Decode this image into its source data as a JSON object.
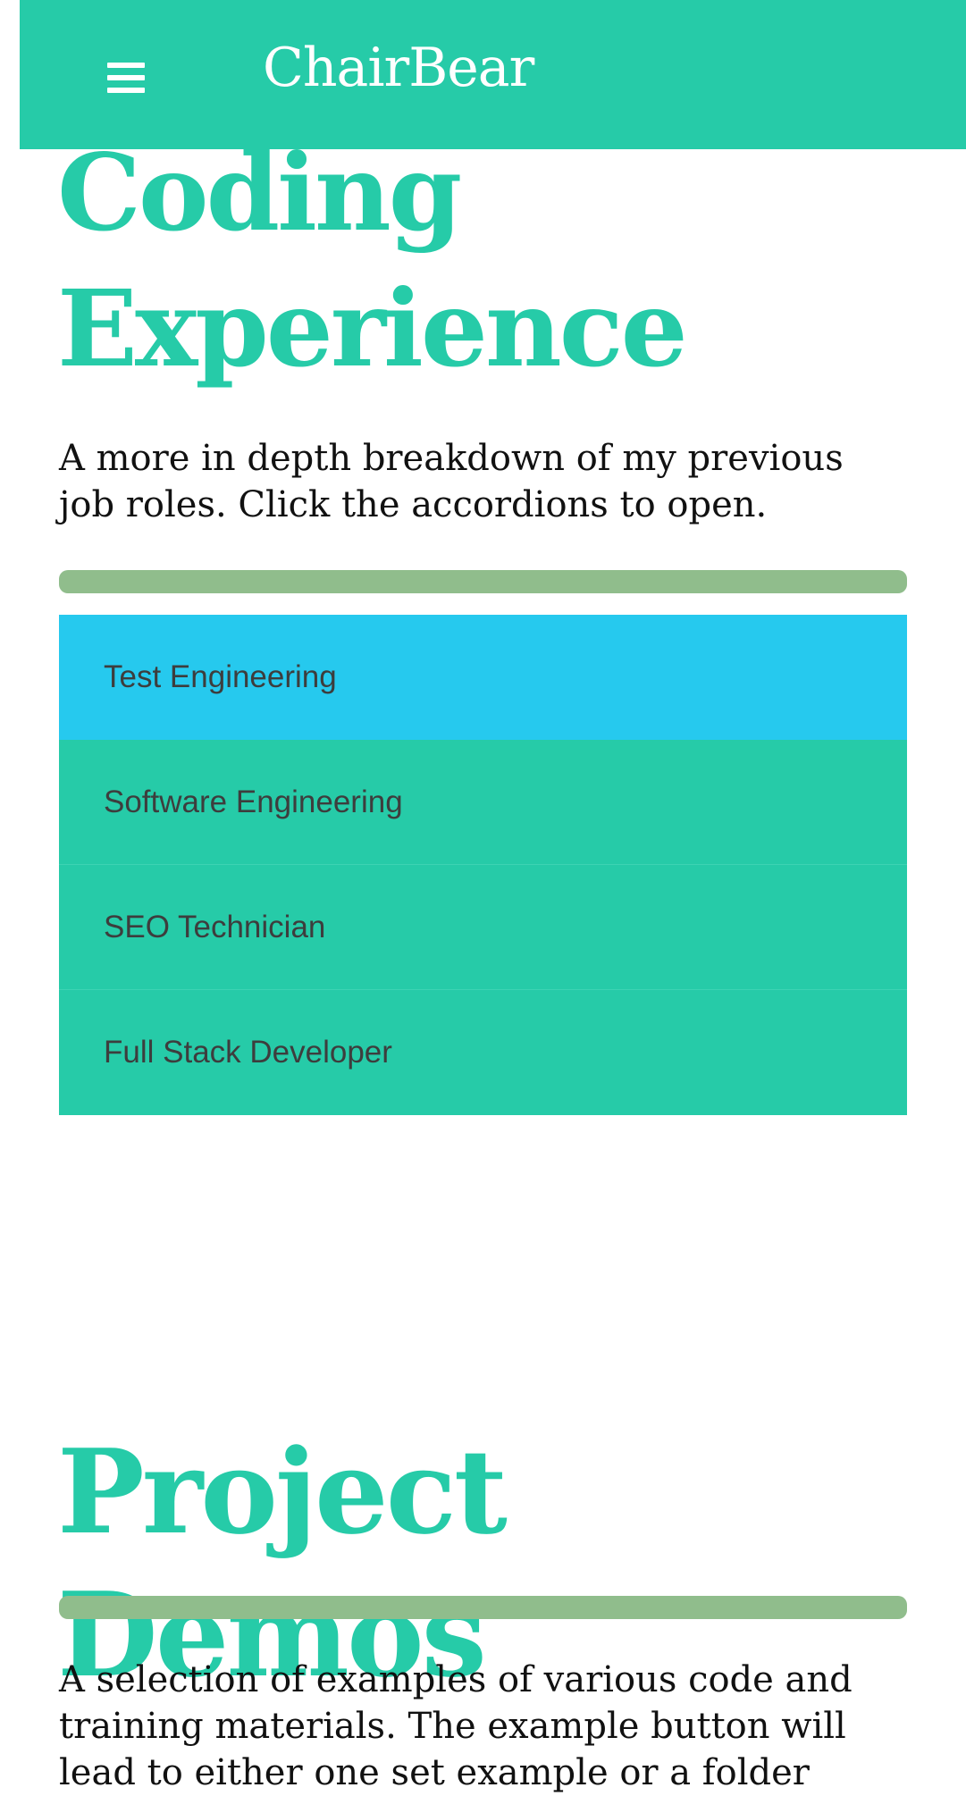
{
  "navbar": {
    "brand": "ChairBear",
    "menu_icon": "hamburger-menu-icon",
    "background": "#26cba8"
  },
  "coding_section": {
    "title_line1": "Coding",
    "title_line2": "Experience",
    "description": "A more in depth breakdown of my previous job roles. Click the accordions to open.",
    "accordion_items": [
      {
        "label": "Test Engineering",
        "active": true
      },
      {
        "label": "Software Engineering",
        "active": false
      },
      {
        "label": "SEO Technician",
        "active": false
      },
      {
        "label": "Full Stack Developer",
        "active": false
      }
    ]
  },
  "projects_section": {
    "title": "Project Demos",
    "description": "A selection of examples of various code and training materials. The example button will lead to either one set example or a folder"
  },
  "colors": {
    "accent": "#26cba8",
    "accordion_active": "#26c9ee",
    "divider": "#90bd8c",
    "text": "#111111"
  }
}
